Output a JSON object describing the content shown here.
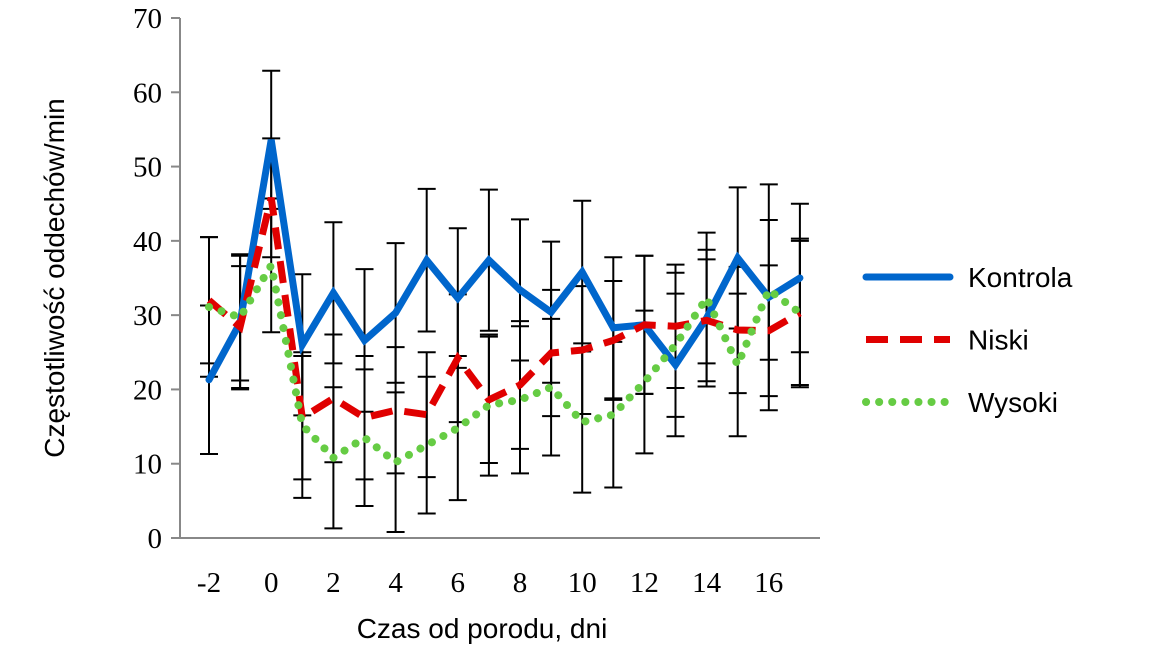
{
  "chart_data": {
    "type": "line",
    "title": "",
    "xlabel": "Czas od porodu, dni",
    "ylabel": "Częstotliwość oddechów/min",
    "ylim": [
      0,
      70
    ],
    "yticks": [
      "0",
      "10",
      "20",
      "30",
      "40",
      "50",
      "60",
      "70"
    ],
    "xtick_labels": [
      "-2",
      "0",
      "2",
      "4",
      "6",
      "8",
      "10",
      "12",
      "14",
      "16"
    ],
    "grid": false,
    "legend_position": "right",
    "x": [
      -2,
      -1,
      0,
      1,
      2,
      3,
      4,
      5,
      6,
      7,
      8,
      9,
      10,
      11,
      12,
      13,
      14,
      15,
      16,
      17
    ],
    "series": [
      {
        "name": "Kontrola",
        "color": "#0066cc",
        "style": "solid",
        "values": [
          21.3,
          29,
          53.6,
          26,
          33,
          26.6,
          30.3,
          37.4,
          32.3,
          37.4,
          33.4,
          30.4,
          35.8,
          28.3,
          28.7,
          23.3,
          29.6,
          37.7,
          32.4,
          35
        ],
        "errors": [
          10,
          9,
          9.3,
          9.5,
          9.5,
          9.6,
          9.4,
          9.6,
          9.4,
          9.5,
          9.5,
          9.5,
          9.6,
          9.5,
          9.3,
          9.6,
          9.2,
          9.5,
          15.2,
          10
        ]
      },
      {
        "name": "Niski",
        "color": "#e00000",
        "style": "dashed",
        "values": [
          32,
          28.4,
          45.8,
          16.2,
          18.8,
          16.2,
          17.2,
          16.6,
          24.2,
          18.6,
          20.6,
          24.9,
          25.3,
          26.6,
          28.7,
          28.5,
          29.3,
          28,
          27.9,
          30.3
        ],
        "errors": [
          8.5,
          8.2,
          8,
          8.3,
          8.6,
          8.3,
          8.5,
          8.4,
          8.6,
          8.5,
          8.6,
          8.5,
          8.6,
          8,
          9.3,
          8.3,
          8.2,
          8.5,
          8.8,
          9.7
        ]
      },
      {
        "name": "Wysoki",
        "color": "#66cc44",
        "style": "dotted",
        "values": [
          31.1,
          29.7,
          36.7,
          15.2,
          10.8,
          13.5,
          10.2,
          12.5,
          14.8,
          17.9,
          18.6,
          20.3,
          15.6,
          16.6,
          21,
          26,
          32.3,
          23.3,
          33.4,
          30.3
        ],
        "errors": [
          9.4,
          8.5,
          9,
          9.8,
          9.5,
          9.2,
          9.4,
          9.2,
          9.7,
          9.5,
          9.9,
          9.2,
          9.5,
          9.8,
          9.6,
          9.7,
          8.8,
          9.6,
          9.4,
          10
        ]
      }
    ]
  }
}
